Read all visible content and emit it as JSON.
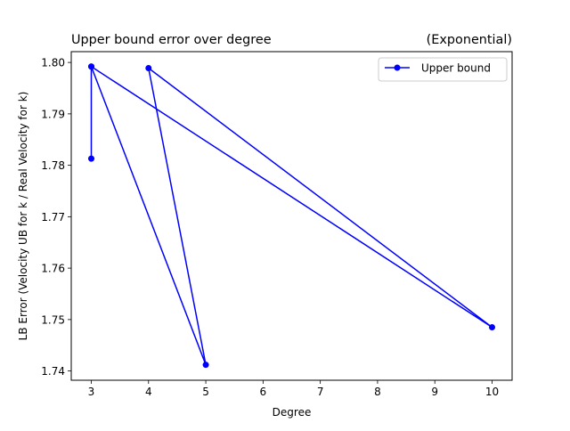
{
  "chart_data": {
    "type": "line",
    "title_left": "Upper bound error over degree",
    "title_right": "(Exponential)",
    "xlabel": "Degree",
    "ylabel": "LB Error (Velocity UB for k / Real Velocity for k)",
    "xlim": [
      2.65,
      10.35
    ],
    "ylim": [
      1.7382,
      1.8021
    ],
    "xticks": [
      3,
      4,
      5,
      6,
      7,
      8,
      9,
      10
    ],
    "xtick_labels": [
      "3",
      "4",
      "5",
      "6",
      "7",
      "8",
      "9",
      "10"
    ],
    "yticks": [
      1.74,
      1.75,
      1.76,
      1.77,
      1.78,
      1.79,
      1.8
    ],
    "ytick_labels": [
      "1.74",
      "1.75",
      "1.76",
      "1.77",
      "1.78",
      "1.79",
      "1.80"
    ],
    "grid": false,
    "legend_position": "top-right",
    "series": [
      {
        "name": "Upper bound",
        "color": "#0000ff",
        "marker": "circle",
        "x": [
          3,
          3,
          10,
          4,
          5,
          3
        ],
        "y": [
          1.7813,
          1.7992,
          1.7485,
          1.7989,
          1.7412,
          1.7992
        ]
      }
    ]
  }
}
